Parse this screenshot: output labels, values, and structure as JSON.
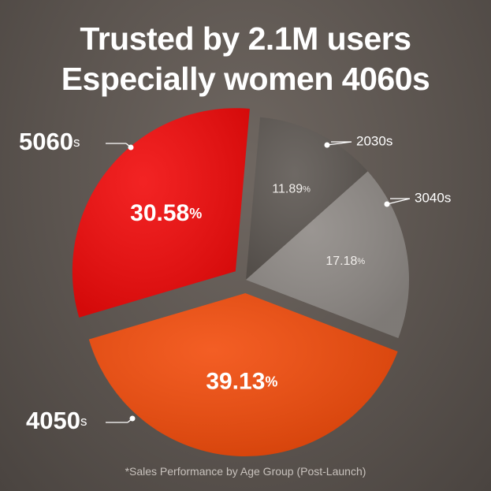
{
  "header": {
    "title_line1": "Trusted by 2.1M users",
    "title_line2": "Especially women 4060s"
  },
  "footnote": "*Sales Performance by Age Group (Post-Launch)",
  "colors": {
    "5060s": "#f10b0b",
    "4050s": "#f24c0c",
    "2030s": "#5e5853",
    "3040s": "#8f8a86"
  },
  "chart_data": {
    "type": "pie",
    "title": "Trusted by 2.1M users / Especially women 4060s",
    "unit": "%",
    "slices": [
      {
        "label": "2030s",
        "value": 11.89,
        "color": "#5e5853",
        "exploded": false,
        "label_style": "outside-small"
      },
      {
        "label": "3040s",
        "value": 17.18,
        "color": "#8f8a86",
        "exploded": false,
        "label_style": "outside-small"
      },
      {
        "label": "4050s",
        "value": 39.13,
        "color": "#f24c0c",
        "exploded": true,
        "label_style": "outside-large"
      },
      {
        "label": "5060s",
        "value": 30.58,
        "color": "#f10b0b",
        "exploded": true,
        "label_style": "outside-large"
      }
    ],
    "legend": "none"
  }
}
